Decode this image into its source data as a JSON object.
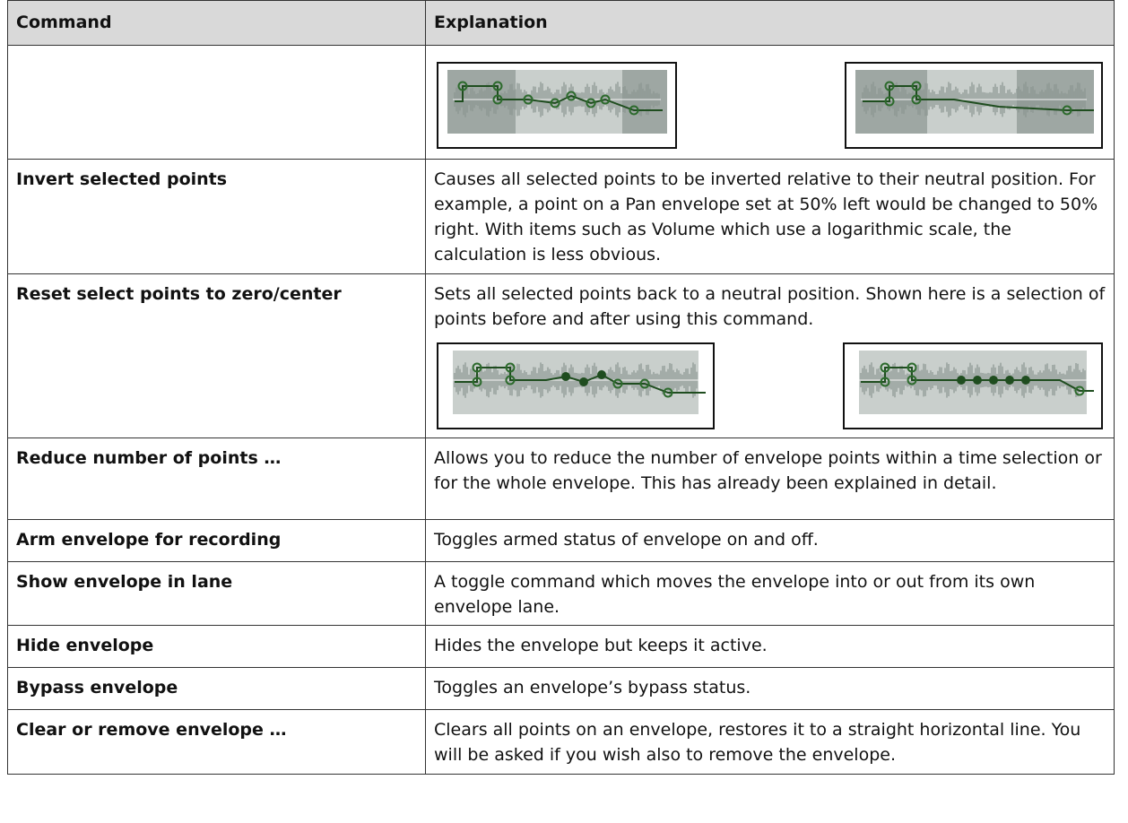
{
  "table": {
    "columns": [
      "Command",
      "Explanation"
    ],
    "rows": [
      [
        "Invert selected points",
        "Causes all selected points to be inverted relative to their neutral position. For example, a point on a Pan envelope set at 50% left would be changed to 50% right. With items such as Volume which use a logarithmic scale, the calculation is less obvious."
      ],
      [
        "Reset select points to zero/center",
        "Sets all selected points back to a neutral position. Shown here is a selection of points before and after using this command."
      ],
      [
        "Reduce number of points …",
        "Allows you to reduce the number of envelope points within a time selection or for the whole envelope. This has already been explained in detail."
      ],
      [
        "Arm envelope for recording",
        "Toggles armed status of envelope on and off."
      ],
      [
        "Show envelope in lane",
        "A toggle command which moves the envelope into or out from its own envelope lane."
      ],
      [
        "Hide envelope",
        "Hides the envelope but keeps it active."
      ],
      [
        "Bypass envelope",
        "Toggles an envelope’s bypass status."
      ],
      [
        "Clear or remove envelope …",
        "Clears all points on an envelope, restores it to a straight horizontal line. You will be asked if you wish also to remove the envelope."
      ]
    ]
  }
}
